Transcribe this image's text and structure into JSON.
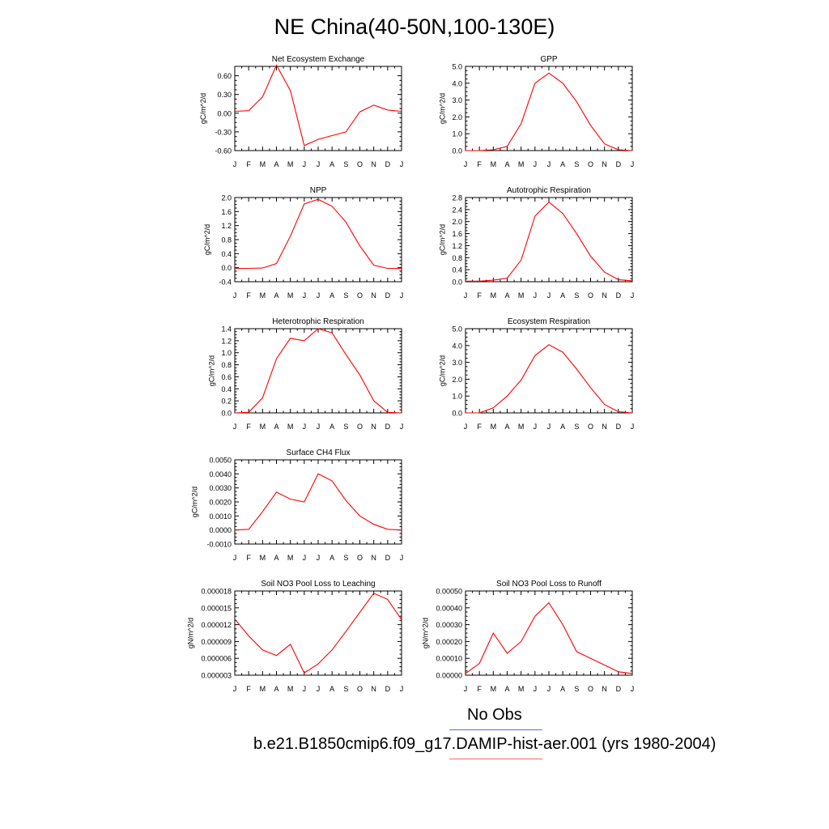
{
  "title": "NE China(40-50N,100-130E)",
  "months": [
    "J",
    "F",
    "M",
    "A",
    "M",
    "J",
    "J",
    "A",
    "S",
    "O",
    "N",
    "D",
    "J"
  ],
  "legend": [
    {
      "label": "No Obs",
      "color": "#6666ee"
    },
    {
      "label": "b.e21.B1850cmip6.f09_g17.DAMIP-hist-aer.001 (yrs 1980-2004)",
      "color": "#ff0000"
    }
  ],
  "chart_data": [
    {
      "type": "line",
      "title": "Net Ecosystem Exchange",
      "ylabel": "gC/m^2/d",
      "ylim": [
        -0.6,
        0.75
      ],
      "yticks": [
        -0.6,
        -0.3,
        0.0,
        0.3,
        0.6
      ],
      "decimals": 2,
      "values": [
        0.03,
        0.04,
        0.26,
        0.77,
        0.36,
        -0.52,
        -0.42,
        -0.36,
        -0.3,
        0.02,
        0.13,
        0.05,
        0.03
      ],
      "color": "#ff0000"
    },
    {
      "type": "line",
      "title": "GPP",
      "ylabel": "gC/m^2/d",
      "ylim": [
        0,
        5
      ],
      "yticks": [
        0,
        1,
        2,
        3,
        4,
        5
      ],
      "decimals": 1,
      "values": [
        0.0,
        0.0,
        0.05,
        0.25,
        1.6,
        4.0,
        4.6,
        4.0,
        2.9,
        1.5,
        0.4,
        0.05,
        0.0
      ],
      "color": "#ff0000"
    },
    {
      "type": "line",
      "title": "NPP",
      "ylabel": "gC/m^2/d",
      "ylim": [
        -0.4,
        2.0
      ],
      "yticks": [
        -0.4,
        0.0,
        0.4,
        0.8,
        1.2,
        1.6,
        2.0
      ],
      "decimals": 1,
      "values": [
        -0.02,
        -0.02,
        -0.01,
        0.12,
        0.9,
        1.82,
        1.95,
        1.75,
        1.3,
        0.62,
        0.07,
        -0.02,
        -0.02
      ],
      "color": "#ff0000"
    },
    {
      "type": "line",
      "title": "Autotrophic Respiration",
      "ylabel": "gC/m^2/d",
      "ylim": [
        0,
        2.8
      ],
      "yticks": [
        0,
        0.4,
        0.8,
        1.2,
        1.6,
        2.0,
        2.4,
        2.8
      ],
      "decimals": 1,
      "values": [
        0.02,
        0.02,
        0.05,
        0.12,
        0.72,
        2.18,
        2.65,
        2.27,
        1.6,
        0.85,
        0.32,
        0.07,
        0.03
      ],
      "color": "#ff0000"
    },
    {
      "type": "line",
      "title": "Heterotrophic Respiration",
      "ylabel": "gC/m^2/d",
      "ylim": [
        0,
        1.4
      ],
      "yticks": [
        0,
        0.2,
        0.4,
        0.6,
        0.8,
        1.0,
        1.2,
        1.4
      ],
      "decimals": 1,
      "values": [
        0.0,
        0.01,
        0.25,
        0.9,
        1.24,
        1.2,
        1.4,
        1.33,
        0.97,
        0.63,
        0.2,
        0.01,
        0.0
      ],
      "color": "#ff0000"
    },
    {
      "type": "line",
      "title": "Ecosystem Respiration",
      "ylabel": "gC/m^2/d",
      "ylim": [
        0,
        5
      ],
      "yticks": [
        0,
        1,
        2,
        3,
        4,
        5
      ],
      "decimals": 1,
      "values": [
        0.0,
        0.0,
        0.3,
        1.0,
        1.95,
        3.4,
        4.05,
        3.6,
        2.6,
        1.5,
        0.5,
        0.07,
        0.0
      ],
      "color": "#ff0000"
    },
    {
      "type": "line",
      "title": "Surface CH4 Flux",
      "ylabel": "gC/m^2/d",
      "ylim": [
        -0.001,
        0.005
      ],
      "yticks": [
        -0.001,
        0.0,
        0.001,
        0.002,
        0.003,
        0.004,
        0.005
      ],
      "decimals": 4,
      "values": [
        0.0,
        5e-05,
        0.0013,
        0.0027,
        0.0022,
        0.002,
        0.004,
        0.0035,
        0.0021,
        0.001,
        0.0004,
        5e-05,
        0.0
      ],
      "color": "#ff0000"
    },
    null,
    {
      "type": "line",
      "title": "Soil NO3 Pool Loss to Leaching",
      "ylabel": "gN/m^2/d",
      "ylim": [
        3e-06,
        1.8e-05
      ],
      "yticks": [
        3e-06,
        6e-06,
        9e-06,
        1.2e-05,
        1.5e-05,
        1.8e-05
      ],
      "decimals": 6,
      "values": [
        1.3e-05,
        1e-05,
        7.5e-06,
        6.5e-06,
        8.5e-06,
        3.4e-06,
        5e-06,
        7.5e-06,
        1.08e-05,
        1.42e-05,
        1.76e-05,
        1.65e-05,
        1.29e-05
      ],
      "color": "#ff0000"
    },
    {
      "type": "line",
      "title": "Soil NO3 Pool Loss to Runoff",
      "ylabel": "gN/m^2/d",
      "ylim": [
        0,
        0.0005
      ],
      "yticks": [
        0,
        0.0001,
        0.0002,
        0.0003,
        0.0004,
        0.0005
      ],
      "decimals": 5,
      "values": [
        1e-05,
        7e-05,
        0.00025,
        0.00013,
        0.0002,
        0.00035,
        0.00043,
        0.0003,
        0.00014,
        0.0001,
        6e-05,
        2e-05,
        1e-05
      ],
      "color": "#ff0000"
    }
  ]
}
